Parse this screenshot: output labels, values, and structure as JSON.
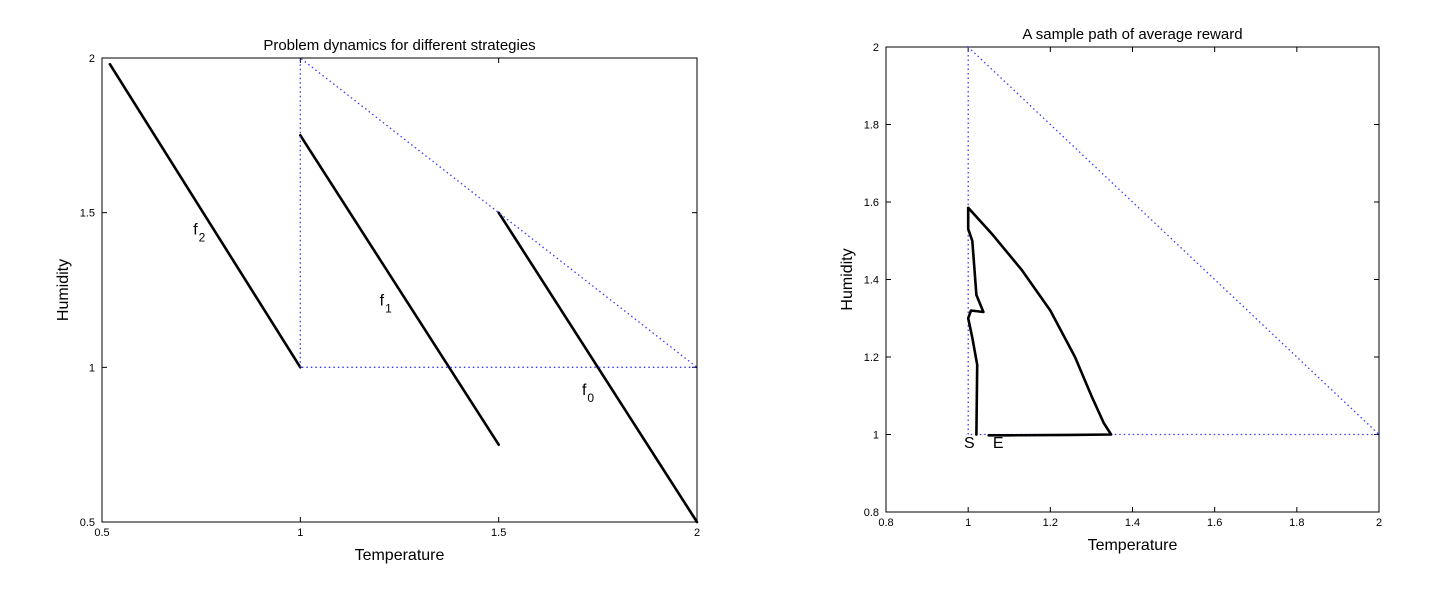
{
  "chart_data": [
    {
      "type": "line",
      "title": "Problem dynamics for different strategies",
      "xlabel": "Temperature",
      "ylabel": "Humidity",
      "xlim": [
        0.5,
        2
      ],
      "ylim": [
        0.5,
        2
      ],
      "xticks": [
        "0.5",
        "1",
        "1.5",
        "2"
      ],
      "yticks": [
        "0.5",
        "1",
        "1.5",
        "2"
      ],
      "grid": false,
      "series": [
        {
          "points": [
            [
              0.52,
              1.98
            ],
            [
              1.0,
              1.0
            ]
          ],
          "style": "solid",
          "color": "#000000"
        },
        {
          "points": [
            [
              1.0,
              1.75
            ],
            [
              1.5,
              0.75
            ]
          ],
          "style": "solid",
          "color": "#000000"
        },
        {
          "points": [
            [
              1.5,
              1.5
            ],
            [
              2.0,
              0.5
            ]
          ],
          "style": "solid",
          "color": "#000000"
        },
        {
          "points": [
            [
              1.0,
              1.0
            ],
            [
              1.0,
              2.0
            ],
            [
              2.0,
              1.0
            ],
            [
              1.0,
              1.0
            ]
          ],
          "style": "dotted",
          "color": "#3a3aff"
        }
      ],
      "annotations": [
        {
          "text": "f",
          "sub": "2",
          "x": 0.73,
          "y": 1.43
        },
        {
          "text": "f",
          "sub": "1",
          "x": 1.2,
          "y": 1.2
        },
        {
          "text": "f",
          "sub": "0",
          "x": 1.71,
          "y": 0.91
        }
      ]
    },
    {
      "type": "line",
      "title": "A sample path of average reward",
      "xlabel": "Temperature",
      "ylabel": "Humidity",
      "xlim": [
        0.8,
        2
      ],
      "ylim": [
        0.8,
        2
      ],
      "xticks": [
        "0.8",
        "1",
        "1.2",
        "1.4",
        "1.6",
        "1.8",
        "2"
      ],
      "yticks": [
        "0.8",
        "1",
        "1.2",
        "1.4",
        "1.6",
        "1.8",
        "2"
      ],
      "grid": false,
      "series": [
        {
          "points": [
            [
              1.0,
              1.0
            ],
            [
              1.0,
              2.0
            ],
            [
              2.0,
              1.0
            ],
            [
              1.0,
              1.0
            ]
          ],
          "style": "dotted",
          "color": "#3a3aff"
        },
        {
          "points": [
            [
              1.02,
              1.0
            ],
            [
              1.022,
              1.18
            ],
            [
              1.01,
              1.25
            ],
            [
              1.0,
              1.3
            ],
            [
              1.007,
              1.32
            ],
            [
              1.037,
              1.316
            ],
            [
              1.02,
              1.36
            ],
            [
              1.01,
              1.5
            ],
            [
              1.0,
              1.53
            ],
            [
              1.0,
              1.585
            ],
            [
              1.06,
              1.515
            ],
            [
              1.13,
              1.425
            ],
            [
              1.2,
              1.32
            ],
            [
              1.26,
              1.2
            ],
            [
              1.3,
              1.1
            ],
            [
              1.33,
              1.03
            ],
            [
              1.348,
              1.0
            ],
            [
              1.25,
              0.999
            ],
            [
              1.1,
              0.998
            ],
            [
              1.05,
              0.998
            ]
          ],
          "style": "solid",
          "color": "#000000"
        }
      ],
      "annotations": [
        {
          "text": "S",
          "x": 0.99,
          "y": 0.965
        },
        {
          "text": "E",
          "x": 1.06,
          "y": 0.965
        }
      ]
    }
  ]
}
